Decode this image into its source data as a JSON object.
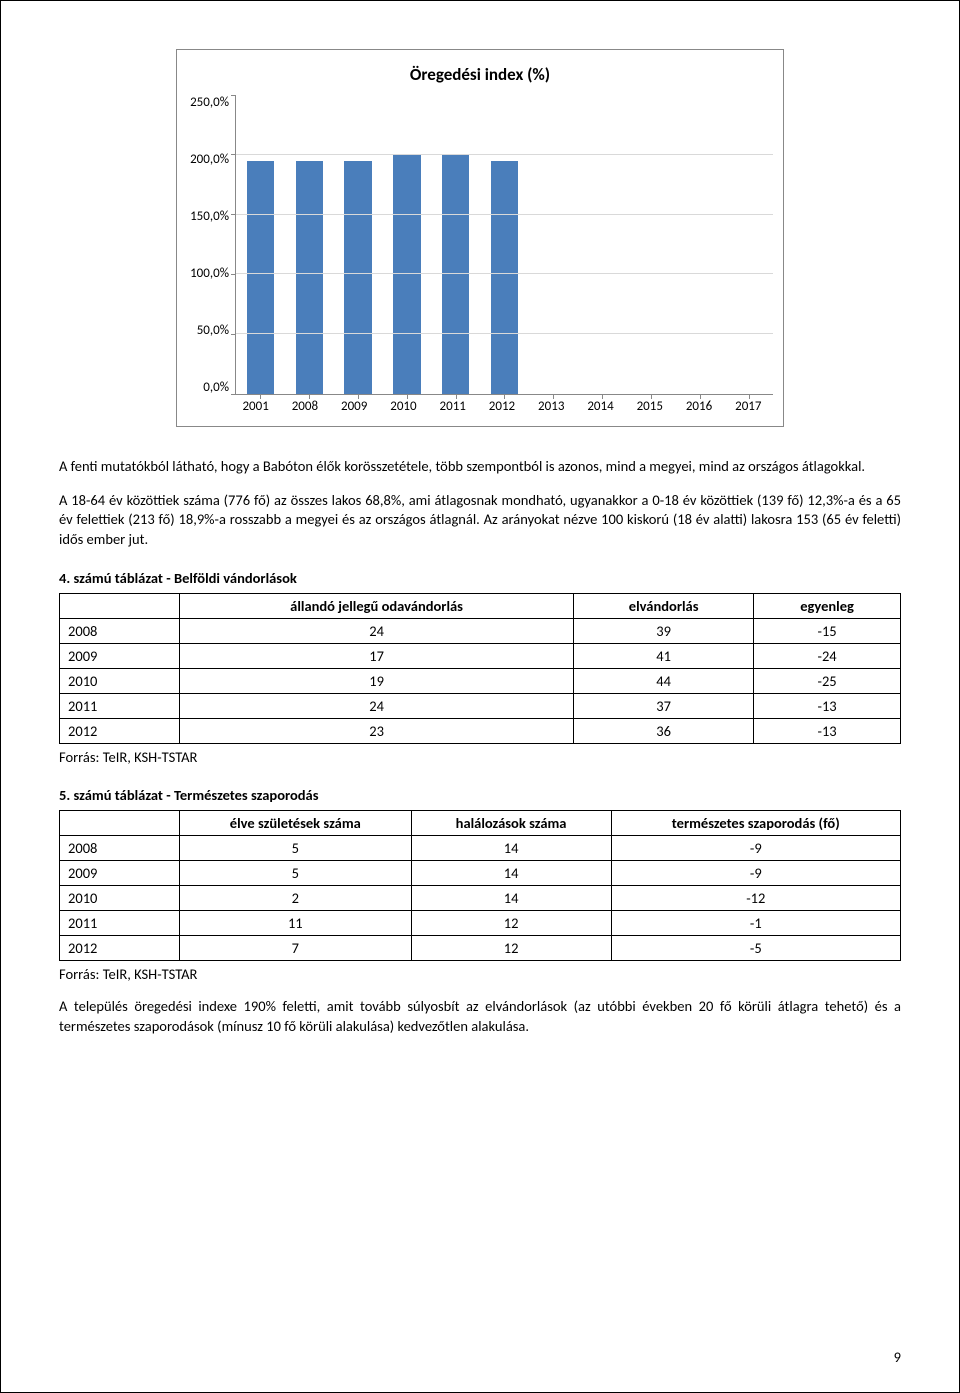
{
  "chart": {
    "type": "bar",
    "title": "Öregedési index (%)",
    "title_fontsize": 17,
    "title_weight": "bold",
    "categories": [
      "2001",
      "2008",
      "2009",
      "2010",
      "2011",
      "2012",
      "2013",
      "2014",
      "2015",
      "2016",
      "2017"
    ],
    "values": [
      195,
      195,
      195,
      200,
      200,
      195,
      0,
      0,
      0,
      0,
      0
    ],
    "bar_color": "#4a7ebb",
    "ylim_min": 0,
    "ylim_max": 250,
    "ytick_step": 50,
    "ytick_labels": [
      "250,0%",
      "200,0%",
      "150,0%",
      "100,0%",
      "50,0%",
      "0,0%"
    ],
    "grid_color": "#d9d9d9",
    "axis_color": "#888888",
    "background_color": "#ffffff",
    "bar_width": 0.56,
    "label_fontsize": 13
  },
  "para1": "A fenti mutatókból látható, hogy a Babóton élők korösszetétele, több szempontból is azonos, mind a megyei, mind az országos átlagokkal.",
  "para2": "A 18-64 év közöttiek száma (776 fő) az összes lakos 68,8%, ami átlagosnak mondható, ugyanakkor a 0-18 év közöttiek (139 fő) 12,3%-a és a 65 év felettiek (213 fő) 18,9%-a rosszabb a megyei és az országos átlagnál. Az arányokat nézve 100 kiskorú (18 év alatti) lakosra 153 (65 év feletti) idős ember jut.",
  "table4": {
    "title": "4. számú táblázat - Belföldi vándorlások",
    "columns": [
      "",
      "állandó jellegű odavándorlás",
      "elvándorlás",
      "egyenleg"
    ],
    "rows": [
      [
        "2008",
        "24",
        "39",
        "-15"
      ],
      [
        "2009",
        "17",
        "41",
        "-24"
      ],
      [
        "2010",
        "19",
        "44",
        "-25"
      ],
      [
        "2011",
        "24",
        "37",
        "-13"
      ],
      [
        "2012",
        "23",
        "36",
        "-13"
      ]
    ],
    "source": "Forrás: TeIR, KSH-TSTAR"
  },
  "table5": {
    "title": "5. számú táblázat - Természetes szaporodás",
    "columns": [
      "",
      "élve születések száma",
      "halálozások száma",
      "természetes szaporodás (fő)"
    ],
    "rows": [
      [
        "2008",
        "5",
        "14",
        "-9"
      ],
      [
        "2009",
        "5",
        "14",
        "-9"
      ],
      [
        "2010",
        "2",
        "14",
        "-12"
      ],
      [
        "2011",
        "11",
        "12",
        "-1"
      ],
      [
        "2012",
        "7",
        "12",
        "-5"
      ]
    ],
    "source": "Forrás: TeIR, KSH-TSTAR"
  },
  "para3": "A település öregedési indexe 190% feletti, amit tovább súlyosbít az elvándorlások (az utóbbi években 20 fő körüli átlagra tehető) és a természetes szaporodások (mínusz 10 fő körüli alakulása) kedvezőtlen alakulása.",
  "page_number": "9"
}
